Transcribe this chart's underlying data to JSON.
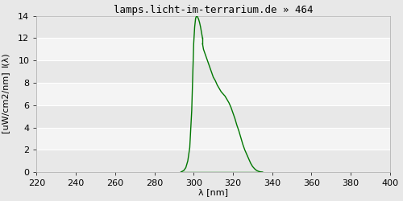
{
  "title": "lamps.licht-im-terrarium.de » 464",
  "xlabel": "λ [nm]",
  "ylabel_line1": "I(λ)",
  "ylabel_line2": "[uW/cm2/nm]",
  "xlim": [
    220,
    400
  ],
  "ylim": [
    0,
    14
  ],
  "xticks": [
    220,
    240,
    260,
    280,
    300,
    320,
    340,
    360,
    380,
    400
  ],
  "yticks": [
    0,
    2,
    4,
    6,
    8,
    10,
    12,
    14
  ],
  "line_color": "#007700",
  "bg_color": "#e8e8e8",
  "title_fontsize": 9,
  "axis_fontsize": 8,
  "tick_fontsize": 8,
  "left_wl": [
    293.5,
    294,
    295,
    296,
    297,
    298,
    299,
    299.5,
    300,
    300.5,
    301,
    301.5,
    302,
    302.5,
    303,
    303.5,
    304,
    304.5
  ],
  "left_int": [
    0,
    0.05,
    0.15,
    0.4,
    1.0,
    2.2,
    5.5,
    8.5,
    11.5,
    13.0,
    13.8,
    14.0,
    13.9,
    13.7,
    13.4,
    13.0,
    12.5,
    12.0
  ],
  "right_wl": [
    304.5,
    305,
    306,
    307,
    308,
    309,
    310,
    311,
    312,
    313,
    314,
    315,
    316,
    317,
    318,
    319,
    320,
    321,
    322,
    323,
    324,
    325,
    326,
    327,
    328,
    329,
    330,
    331,
    332,
    333,
    334,
    335
  ],
  "right_int": [
    11.5,
    11.0,
    10.5,
    10.0,
    9.5,
    9.0,
    8.5,
    8.2,
    7.8,
    7.5,
    7.2,
    7.0,
    6.8,
    6.5,
    6.2,
    5.8,
    5.3,
    4.8,
    4.2,
    3.7,
    3.1,
    2.5,
    2.0,
    1.6,
    1.2,
    0.8,
    0.5,
    0.3,
    0.15,
    0.07,
    0.02,
    0.0
  ]
}
